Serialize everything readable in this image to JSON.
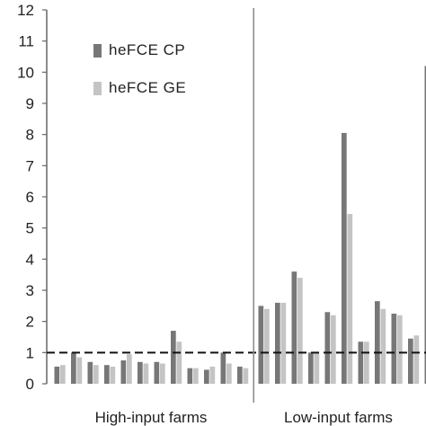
{
  "chart_data": {
    "type": "bar",
    "ylim": [
      0,
      12
    ],
    "yticks": [
      0,
      1,
      2,
      3,
      4,
      5,
      6,
      7,
      8,
      9,
      10,
      11,
      12
    ],
    "reference_line": 1,
    "group_labels": [
      "High-input farms",
      "Low-input farms"
    ],
    "legend_placement": "top-left",
    "series": [
      {
        "name": "heFCE CP",
        "color": "#777777",
        "values": [
          0.55,
          1.0,
          0.7,
          0.6,
          0.75,
          0.7,
          0.7,
          1.7,
          0.5,
          0.45,
          1.0,
          0.55,
          2.5,
          2.6,
          3.6,
          1.0,
          2.3,
          8.05,
          1.35,
          2.65,
          2.25,
          1.45,
          10.2
        ]
      },
      {
        "name": "heFCE GE",
        "color": "#c4c4c4",
        "values": [
          0.6,
          0.85,
          0.6,
          0.55,
          0.95,
          0.65,
          0.65,
          1.35,
          0.5,
          0.55,
          0.65,
          0.5,
          2.4,
          2.6,
          3.4,
          1.0,
          2.2,
          5.45,
          1.35,
          2.4,
          2.2,
          1.55,
          null
        ]
      }
    ],
    "group_sizes": [
      12,
      11
    ]
  }
}
